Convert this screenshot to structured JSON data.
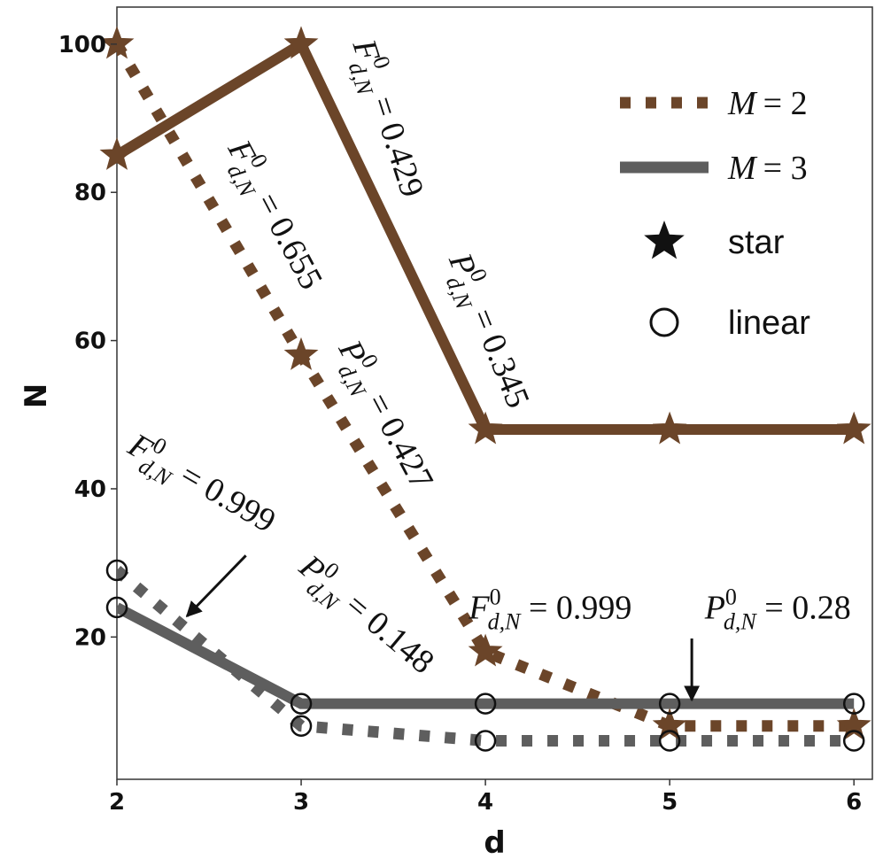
{
  "chart_data": {
    "type": "line",
    "xlabel": "d",
    "ylabel": "N",
    "x": [
      2,
      3,
      4,
      5,
      6
    ],
    "xlim": [
      2,
      6.1
    ],
    "ylim": [
      0.8,
      105
    ],
    "xticks": [
      "2",
      "3",
      "4",
      "5",
      "6"
    ],
    "yticks": [
      "20",
      "40",
      "60",
      "80",
      "100"
    ],
    "colors": {
      "M2": "#6b4529",
      "M3": "#5e5e5e"
    },
    "series": [
      {
        "name": "M = 2, star",
        "M": 2,
        "topology": "star",
        "style": "dotted",
        "color": "#6b4529",
        "values": [
          100,
          58,
          18,
          8,
          8
        ]
      },
      {
        "name": "M = 3, star",
        "M": 3,
        "topology": "star",
        "style": "solid",
        "color": "#6b4529",
        "values": [
          85,
          100,
          48,
          48,
          48
        ]
      },
      {
        "name": "M = 2, linear",
        "M": 2,
        "topology": "linear",
        "style": "dotted",
        "color": "#5e5e5e",
        "values": [
          29,
          8,
          6,
          6,
          6
        ]
      },
      {
        "name": "M = 3, linear",
        "M": 3,
        "topology": "linear",
        "style": "solid",
        "color": "#5e5e5e",
        "values": [
          24,
          11,
          11,
          11,
          11
        ]
      }
    ],
    "legend": {
      "placement": "top-right",
      "entries": [
        {
          "label_main": "M",
          "label_eq": "= 2",
          "style": "dotted",
          "color": "#6b4529"
        },
        {
          "label_main": "M",
          "label_eq": "= 3",
          "style": "solid",
          "color": "#5e5e5e"
        },
        {
          "label": "star",
          "marker": "star"
        },
        {
          "label": "linear",
          "marker": "circle"
        }
      ]
    },
    "annotations": [
      {
        "base": "F",
        "sup": "0",
        "sub": "d,N",
        "rest": " = 0.429",
        "anchor_data": [
          3.28,
          100
        ],
        "rotation_deg": 72
      },
      {
        "base": "P",
        "sup": "0",
        "sub": "d,N",
        "rest": " = 0.345",
        "anchor_data": [
          3.8,
          71
        ],
        "rotation_deg": 68
      },
      {
        "base": "F",
        "sup": "0",
        "sub": "d,N",
        "rest": " = 0.655",
        "anchor_data": [
          2.6,
          86
        ],
        "rotation_deg": 62
      },
      {
        "base": "P",
        "sup": "0",
        "sub": "d,N",
        "rest": " = 0.427",
        "anchor_data": [
          3.2,
          59
        ],
        "rotation_deg": 62
      },
      {
        "base": "F",
        "sup": "0",
        "sub": "d,N",
        "rest": " = 0.999",
        "anchor_data": [
          2.05,
          45
        ],
        "rotation_deg": 30
      },
      {
        "base": "P",
        "sup": "0",
        "sub": "d,N",
        "rest": " = 0.148",
        "anchor_data": [
          2.98,
          29
        ],
        "rotation_deg": 40
      },
      {
        "base": "F",
        "sup": "0",
        "sub": "d,N",
        "rest": " = 0.999",
        "anchor_data": [
          3.91,
          22.5
        ],
        "rotation_deg": 0
      },
      {
        "base": "P",
        "sup": "0",
        "sub": "d,N",
        "rest": " = 0.28",
        "anchor_data": [
          5.19,
          22.5
        ],
        "rotation_deg": 0
      }
    ],
    "arrows": [
      {
        "from": [
          2.7,
          31
        ],
        "to": [
          2.38,
          22.8
        ]
      },
      {
        "from": [
          5.12,
          19.8
        ],
        "to": [
          5.12,
          11.5
        ]
      }
    ]
  }
}
